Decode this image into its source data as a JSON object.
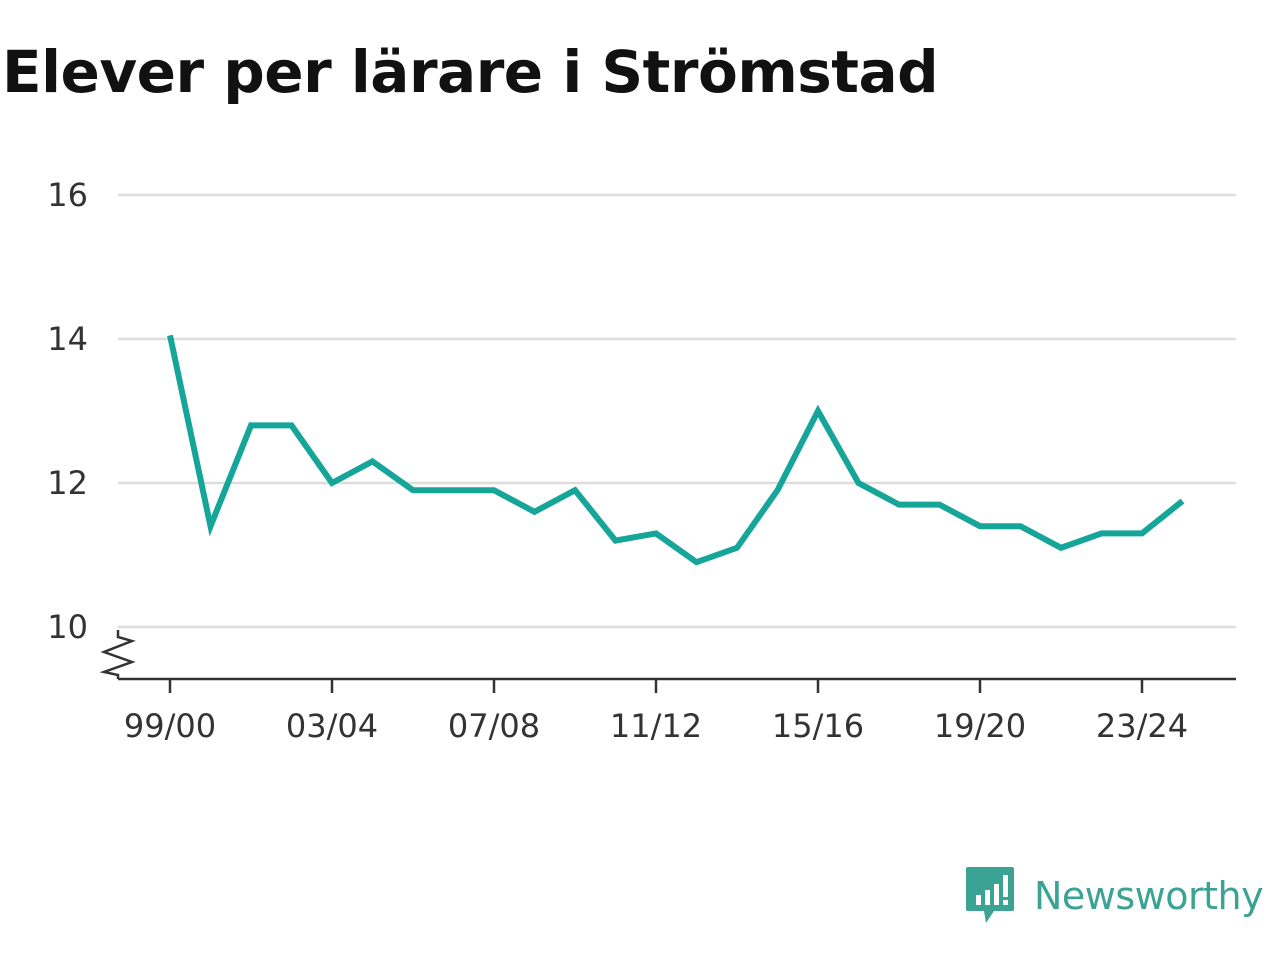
{
  "title": "Elever per lärare i Strömstad",
  "brand": {
    "name": "Newsworthy",
    "icon": "newsworthy-logo-icon",
    "color": "#3aa394"
  },
  "chart_data": {
    "type": "line",
    "title": "Elever per lärare i Strömstad",
    "xlabel": "",
    "ylabel": "",
    "x_tick_labels": [
      "99/00",
      "03/04",
      "07/08",
      "11/12",
      "15/16",
      "19/20",
      "23/24"
    ],
    "y_ticks": [
      10,
      12,
      14,
      16
    ],
    "ylim": [
      10,
      16
    ],
    "y_axis_break": true,
    "grid": true,
    "legend": "none",
    "line_color": "#16a599",
    "categories": [
      "99/00",
      "00/01",
      "01/02",
      "02/03",
      "03/04",
      "04/05",
      "05/06",
      "06/07",
      "07/08",
      "08/09",
      "09/10",
      "10/11",
      "11/12",
      "12/13",
      "13/14",
      "14/15",
      "15/16",
      "16/17",
      "17/18",
      "18/19",
      "19/20",
      "20/21",
      "21/22",
      "22/23",
      "23/24",
      "24/25"
    ],
    "series": [
      {
        "values": [
          14.05,
          11.4,
          12.8,
          12.8,
          12.0,
          12.3,
          11.9,
          11.9,
          11.9,
          11.6,
          11.9,
          11.2,
          11.3,
          10.9,
          11.1,
          11.9,
          13.0,
          12.0,
          11.7,
          11.7,
          11.4,
          11.4,
          11.1,
          11.3,
          11.3,
          11.75
        ]
      }
    ]
  }
}
